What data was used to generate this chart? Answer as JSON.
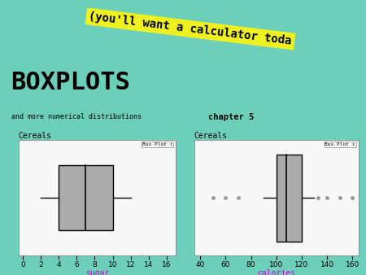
{
  "bg_color": "#6bcfba",
  "yellow_banner_text": "(you'll want a calculator toda",
  "yellow_banner_color": "#eef020",
  "title_text": "BOXPLOTS",
  "subtitle_text": "and more numerical distributions",
  "chapter_text": "chapter 5",
  "plot1": {
    "title": "Cereals",
    "xlabel": "sugar",
    "xlabel_color": "#cc00cc",
    "xlim": [
      -0.5,
      17
    ],
    "xticks": [
      0,
      2,
      4,
      6,
      8,
      10,
      12,
      14,
      16
    ],
    "whisker_low": 2,
    "q1": 4,
    "median": 7,
    "q3": 10,
    "whisker_high": 12,
    "box_color": "#aaaaaa",
    "bg_color": "#f8f8f8"
  },
  "plot2": {
    "title": "Cereals",
    "xlabel": "calories",
    "xlabel_color": "#cc00cc",
    "xlim": [
      35,
      165
    ],
    "xticks": [
      40,
      60,
      80,
      100,
      120,
      140,
      160
    ],
    "whisker_low": 90,
    "q1": 100,
    "median": 108,
    "q3": 120,
    "whisker_high": 130,
    "box_color": "#aaaaaa",
    "outliers": [
      50,
      60,
      70,
      133,
      140,
      150,
      160
    ],
    "bg_color": "#f8f8f8"
  }
}
